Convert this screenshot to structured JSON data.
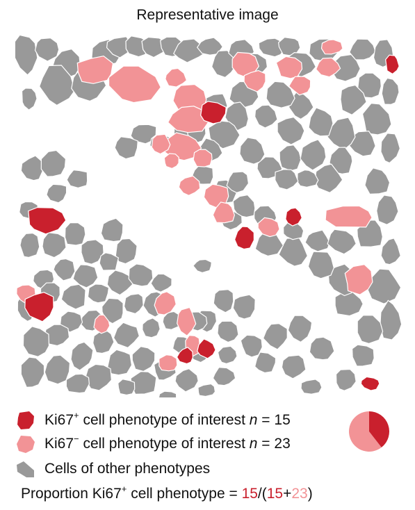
{
  "title": "Representative image",
  "colors": {
    "ki67_pos": "#c9202d",
    "ki67_neg": "#f29396",
    "other": "#999999"
  },
  "legend": [
    {
      "marker": "ki67-positive-cell-icon",
      "pre": "Ki67",
      "sup": "+",
      "post": " cell phenotype of interest ",
      "n_label": "n",
      "eq": " = ",
      "n": "15"
    },
    {
      "marker": "ki67-negative-cell-icon",
      "pre": "Ki67",
      "sup": "−",
      "post": " cell phenotype of interest ",
      "n_label": "n",
      "eq": " = ",
      "n": "23"
    },
    {
      "marker": "other-cell-icon",
      "text": "Cells of other phenotypes"
    }
  ],
  "pie": {
    "ki67_pos": 15,
    "ki67_neg": 23
  },
  "formula": {
    "pre": "Proportion Ki67",
    "sup": "+",
    "mid": " cell phenotype = ",
    "num": "15",
    "slash": "/(",
    "a": "15",
    "plus": "+",
    "b": "23",
    "close": ")"
  }
}
